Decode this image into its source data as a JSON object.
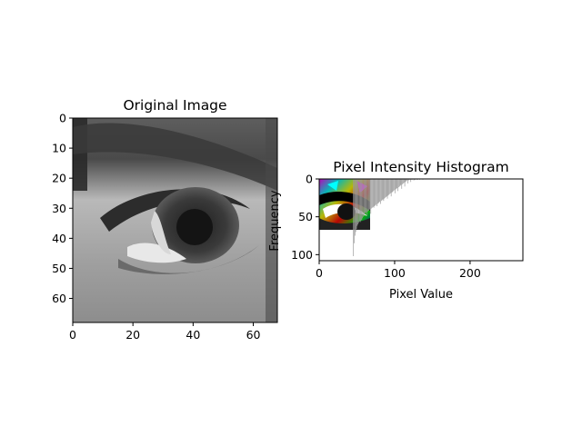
{
  "chart_data": [
    {
      "type": "heatmap",
      "title": "Original Image",
      "image_content": "grayscale close-up of a human eye",
      "colormap": "gray",
      "xlim": [
        0,
        68
      ],
      "ylim": [
        68,
        0
      ],
      "xticks": [
        0,
        20,
        40,
        60
      ],
      "yticks": [
        0,
        10,
        20,
        30,
        40,
        50,
        60
      ],
      "xlabel": "",
      "ylabel": ""
    },
    {
      "type": "bar",
      "title": "Pixel Intensity Histogram",
      "xlabel": "Pixel Value",
      "ylabel": "Frequency",
      "xlim": [
        0,
        270
      ],
      "ylim": [
        108,
        0
      ],
      "xticks": [
        0,
        100,
        200
      ],
      "yticks": [
        0,
        50,
        100
      ],
      "bar_color": "#999999",
      "bins_x_start": 45,
      "bins_x_step": 1,
      "values": [
        102,
        85,
        75,
        70,
        66,
        62,
        60,
        58,
        56,
        57,
        55,
        54,
        52,
        50,
        49,
        47,
        45,
        44,
        48,
        43,
        42,
        41,
        40,
        46,
        39,
        38,
        37,
        38,
        36,
        35,
        34,
        36,
        33,
        32,
        31,
        30,
        33,
        29,
        28,
        27,
        29,
        26,
        25,
        24,
        23,
        26,
        22,
        21,
        20,
        19,
        23,
        18,
        17,
        16,
        15,
        19,
        14,
        13,
        12,
        16,
        11,
        10,
        9,
        8,
        13,
        7,
        6,
        5,
        10,
        4,
        3,
        2,
        6,
        2,
        1,
        1,
        4,
        1,
        1,
        0,
        2,
        1,
        1,
        0,
        1,
        1,
        0,
        0,
        1,
        0,
        0,
        0,
        1,
        0,
        0,
        0,
        0,
        0,
        0,
        0,
        0,
        0,
        0,
        0,
        0,
        0,
        0,
        0,
        0,
        0,
        0,
        0,
        0,
        0,
        0,
        0,
        0,
        0,
        0,
        0,
        0,
        0,
        0,
        0,
        0,
        0,
        0
      ],
      "inset": {
        "content": "false-color eye image",
        "xlim": [
          0,
          68
        ],
        "ylim": [
          0,
          68
        ],
        "colormap": "multicolor"
      }
    }
  ]
}
